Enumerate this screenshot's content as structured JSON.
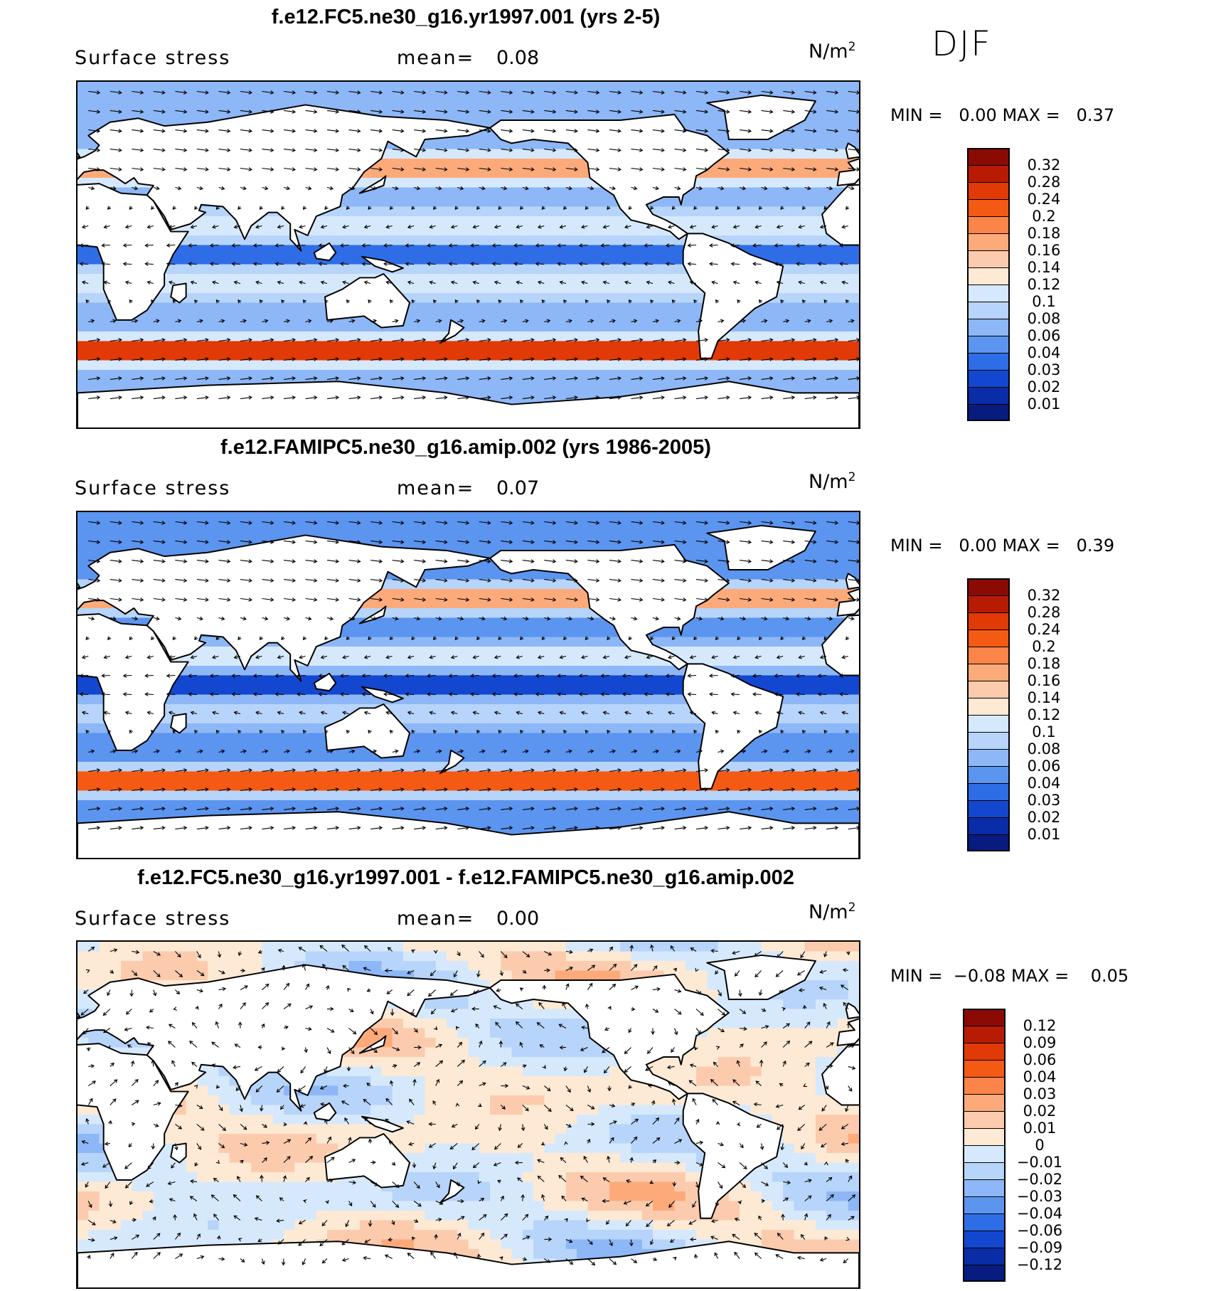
{
  "season": "DJF",
  "panels": [
    {
      "title": "f.e12.FC5.ne30_g16.yr1997.001 (yrs 2-5)",
      "variable": "Surface stress",
      "mean_label": "mean=",
      "mean_value": "0.08",
      "units": "N/m",
      "units_exp": "2",
      "min_label": "MIN =",
      "min_value": "0.00",
      "max_label": "MAX =",
      "max_value": "0.37"
    },
    {
      "title": "f.e12.FAMIPC5.ne30_g16.amip.002 (yrs 1986-2005)",
      "variable": "Surface stress",
      "mean_label": "mean=",
      "mean_value": "0.07",
      "units": "N/m",
      "units_exp": "2",
      "min_label": "MIN =",
      "min_value": "0.00",
      "max_label": "MAX =",
      "max_value": "0.39"
    },
    {
      "title": "f.e12.FC5.ne30_g16.yr1997.001 - f.e12.FAMIPC5.ne30_g16.amip.002",
      "variable": "Surface stress",
      "mean_label": "mean=",
      "mean_value": "0.00",
      "units": "N/m",
      "units_exp": "2",
      "min_label": "MIN =",
      "min_value": "−0.08",
      "max_label": "MAX =",
      "max_value": "0.05"
    }
  ],
  "chart_data": [
    {
      "type": "heatmap",
      "title": "f.e12.FC5.ne30_g16.yr1997.001 (yrs 2-5)",
      "field": "Surface stress (N/m2), DJF, with stress vectors",
      "mean": 0.08,
      "min": 0.0,
      "max": 0.37,
      "colorbar": {
        "levels": [
          "0.32",
          "0.28",
          "0.24",
          "0.2",
          "0.18",
          "0.16",
          "0.14",
          "0.12",
          "0.1",
          "0.08",
          "0.06",
          "0.04",
          "0.03",
          "0.02",
          "0.01"
        ],
        "colors": [
          "#8b0b04",
          "#b81b04",
          "#e13a06",
          "#f55a14",
          "#fb8448",
          "#fdaa7b",
          "#fccbad",
          "#fde9d4",
          "#d6e9fc",
          "#b7d4fa",
          "#8db7f6",
          "#5c95ef",
          "#2e6de6",
          "#1447cf",
          "#0a2ca6",
          "#081b7f"
        ]
      }
    },
    {
      "type": "heatmap",
      "title": "f.e12.FAMIPC5.ne30_g16.amip.002 (yrs 1986-2005)",
      "field": "Surface stress (N/m2), DJF, with stress vectors",
      "mean": 0.07,
      "min": 0.0,
      "max": 0.39,
      "colorbar": {
        "levels": [
          "0.32",
          "0.28",
          "0.24",
          "0.2",
          "0.18",
          "0.16",
          "0.14",
          "0.12",
          "0.1",
          "0.08",
          "0.06",
          "0.04",
          "0.03",
          "0.02",
          "0.01"
        ],
        "colors": [
          "#8b0b04",
          "#b81b04",
          "#e13a06",
          "#f55a14",
          "#fb8448",
          "#fdaa7b",
          "#fccbad",
          "#fde9d4",
          "#d6e9fc",
          "#b7d4fa",
          "#8db7f6",
          "#5c95ef",
          "#2e6de6",
          "#1447cf",
          "#0a2ca6",
          "#081b7f"
        ]
      }
    },
    {
      "type": "heatmap",
      "title": "f.e12.FC5.ne30_g16.yr1997.001 - f.e12.FAMIPC5.ne30_g16.amip.002",
      "field": "Surface stress difference (N/m2), DJF, with stress vectors",
      "mean": 0.0,
      "min": -0.08,
      "max": 0.05,
      "colorbar": {
        "levels": [
          "0.12",
          "0.09",
          "0.06",
          "0.04",
          "0.03",
          "0.02",
          "0.01",
          "0",
          "−0.01",
          "−0.02",
          "−0.03",
          "−0.04",
          "−0.06",
          "−0.09",
          "−0.12"
        ],
        "colors": [
          "#8b0b04",
          "#b81b04",
          "#e13a06",
          "#f55a14",
          "#fb8448",
          "#fdaa7b",
          "#fccbad",
          "#fde9d4",
          "#d6e9fc",
          "#b7d4fa",
          "#8db7f6",
          "#5c95ef",
          "#2e6de6",
          "#1447cf",
          "#0a2ca6",
          "#081b7f"
        ]
      }
    }
  ]
}
